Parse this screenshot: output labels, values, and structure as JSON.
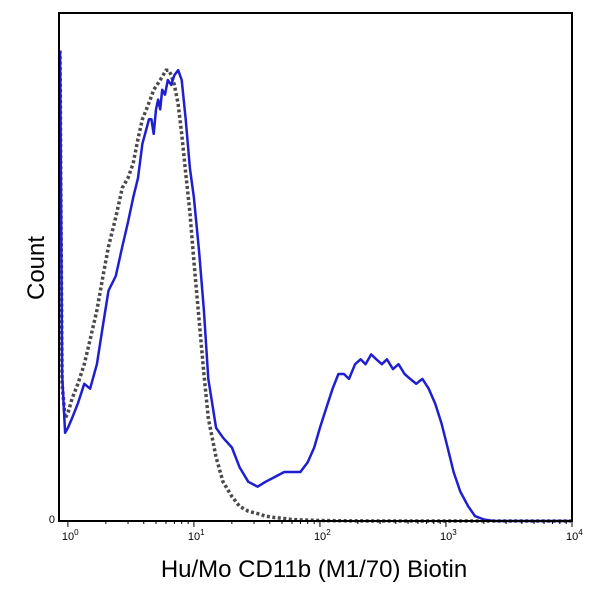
{
  "chart_data": {
    "type": "line",
    "title": "",
    "xlabel": "Hu/Mo CD11b (M1/70) Biotin",
    "ylabel": "Count",
    "x_scale": "log",
    "xlim": [
      0.85,
      10000
    ],
    "ylim": [
      0,
      100
    ],
    "grid": false,
    "legend": "none",
    "x_ticks": [
      {
        "value": 1,
        "base": "10",
        "exp": "0"
      },
      {
        "value": 10,
        "base": "10",
        "exp": "1"
      },
      {
        "value": 100,
        "base": "10",
        "exp": "2"
      },
      {
        "value": 1000,
        "base": "10",
        "exp": "3"
      },
      {
        "value": 10000,
        "base": "10",
        "exp": "4"
      }
    ],
    "y_ticks": [
      {
        "value": 0,
        "label": "0"
      }
    ],
    "series": [
      {
        "color": "#1f1fd0",
        "style": "solid",
        "x": [
          0.86,
          0.87,
          0.88,
          0.9,
          0.95,
          1.0,
          1.08,
          1.2,
          1.35,
          1.5,
          1.7,
          1.9,
          2.1,
          2.4,
          2.7,
          3.0,
          3.3,
          3.6,
          3.9,
          4.2,
          4.4,
          4.6,
          4.8,
          5.0,
          5.2,
          5.4,
          5.6,
          5.9,
          6.2,
          6.6,
          7.0,
          7.5,
          8.0,
          8.6,
          9.3,
          10,
          11,
          12,
          13,
          15,
          17,
          20,
          23,
          27,
          32,
          37,
          44,
          52,
          60,
          70,
          80,
          90,
          100,
          112,
          126,
          140,
          155,
          170,
          190,
          210,
          230,
          255,
          280,
          310,
          340,
          380,
          420,
          470,
          520,
          580,
          650,
          730,
          820,
          920,
          1030,
          1150,
          1300,
          1500,
          1700,
          2000,
          2400,
          3000,
          4000,
          6000,
          10000
        ],
        "y": [
          96,
          90,
          70,
          30,
          18,
          19,
          21,
          24,
          28,
          27,
          32,
          40,
          47,
          50,
          56,
          61,
          66,
          70,
          77,
          80,
          82,
          82,
          79,
          84,
          86,
          84,
          88,
          87,
          90,
          89,
          91,
          92,
          90,
          82,
          72,
          66,
          55,
          43,
          29,
          19,
          17,
          15,
          11,
          8,
          7,
          8,
          9,
          10,
          10,
          10,
          12,
          15,
          19,
          23,
          27,
          30,
          30,
          29,
          32,
          33,
          32,
          34,
          33,
          32,
          33,
          31,
          32,
          30,
          29,
          28,
          29,
          27,
          24,
          20,
          15,
          10,
          6,
          3,
          1,
          0.3,
          0,
          0,
          0,
          0,
          0
        ]
      },
      {
        "color": "#4a4a4a",
        "style": "dotted",
        "x": [
          0.86,
          0.87,
          0.88,
          0.9,
          0.95,
          1.0,
          1.08,
          1.2,
          1.35,
          1.5,
          1.7,
          1.9,
          2.1,
          2.4,
          2.7,
          3.0,
          3.3,
          3.6,
          3.9,
          4.2,
          4.5,
          4.8,
          5.1,
          5.4,
          5.7,
          6.0,
          6.3,
          6.6,
          7.0,
          7.5,
          8.0,
          8.6,
          9.3,
          10,
          11,
          12,
          13,
          15,
          17,
          20,
          23,
          27,
          32,
          37,
          44,
          52,
          60,
          75,
          100,
          150,
          300,
          1000,
          3000,
          10000
        ],
        "y": [
          96,
          88,
          65,
          28,
          21,
          22,
          25,
          28,
          32,
          37,
          43,
          50,
          56,
          62,
          68,
          70,
          73,
          78,
          82,
          84,
          86,
          88,
          89,
          90,
          91,
          92,
          92,
          91,
          89,
          85,
          79,
          71,
          63,
          53,
          41,
          30,
          21,
          13,
          8,
          5,
          3,
          2,
          1.5,
          1,
          0.7,
          0.5,
          0.3,
          0.2,
          0.1,
          0.05,
          0,
          0,
          0,
          0
        ]
      }
    ]
  }
}
